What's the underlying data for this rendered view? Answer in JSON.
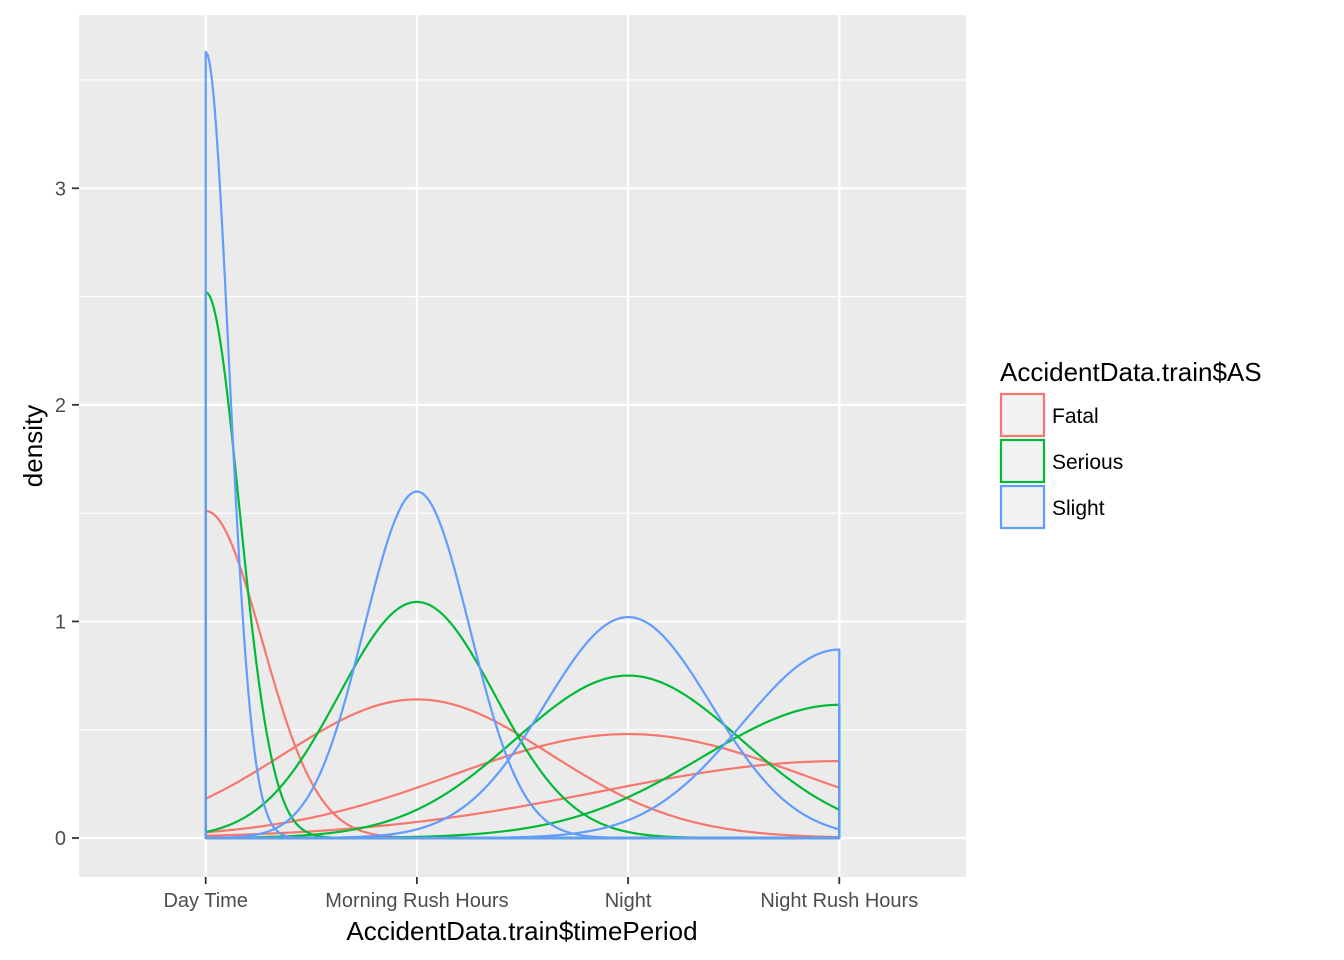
{
  "chart_data": {
    "type": "line",
    "title": "",
    "xlabel": "AccidentData.train$timePeriod",
    "ylabel": "density",
    "categories": [
      "Day Time",
      "Morning Rush Hours",
      "Night",
      "Night Rush Hours"
    ],
    "xlim": [
      0.4,
      4.6
    ],
    "ylim": [
      -0.18,
      3.8
    ],
    "y_ticks": [
      0,
      1,
      2,
      3
    ],
    "grid": true,
    "legend": {
      "title": "AccidentData.train$AS",
      "position": "right",
      "entries": [
        "Fatal",
        "Serious",
        "Slight"
      ]
    },
    "series": [
      {
        "name": "Fatal",
        "color": "#F8766D",
        "curves": [
          {
            "mean": 1.0,
            "sd": 0.266,
            "peak": 1.51
          },
          {
            "mean": 2.0,
            "sd": 0.63,
            "peak": 0.64
          },
          {
            "mean": 3.0,
            "sd": 0.83,
            "peak": 0.48
          },
          {
            "mean": 4.0,
            "sd": 1.13,
            "peak": 0.355
          }
        ]
      },
      {
        "name": "Serious",
        "color": "#00BA38",
        "curves": [
          {
            "mean": 1.0,
            "sd": 0.159,
            "peak": 2.52
          },
          {
            "mean": 2.0,
            "sd": 0.369,
            "peak": 1.09
          },
          {
            "mean": 3.0,
            "sd": 0.535,
            "peak": 0.75
          },
          {
            "mean": 4.0,
            "sd": 0.65,
            "peak": 0.615
          }
        ]
      },
      {
        "name": "Slight",
        "color": "#619CFF",
        "curves": [
          {
            "mean": 1.0,
            "sd": 0.11,
            "peak": 3.63
          },
          {
            "mean": 2.0,
            "sd": 0.25,
            "peak": 1.6
          },
          {
            "mean": 3.0,
            "sd": 0.393,
            "peak": 1.02
          },
          {
            "mean": 4.0,
            "sd": 0.46,
            "peak": 0.87
          }
        ]
      }
    ]
  }
}
